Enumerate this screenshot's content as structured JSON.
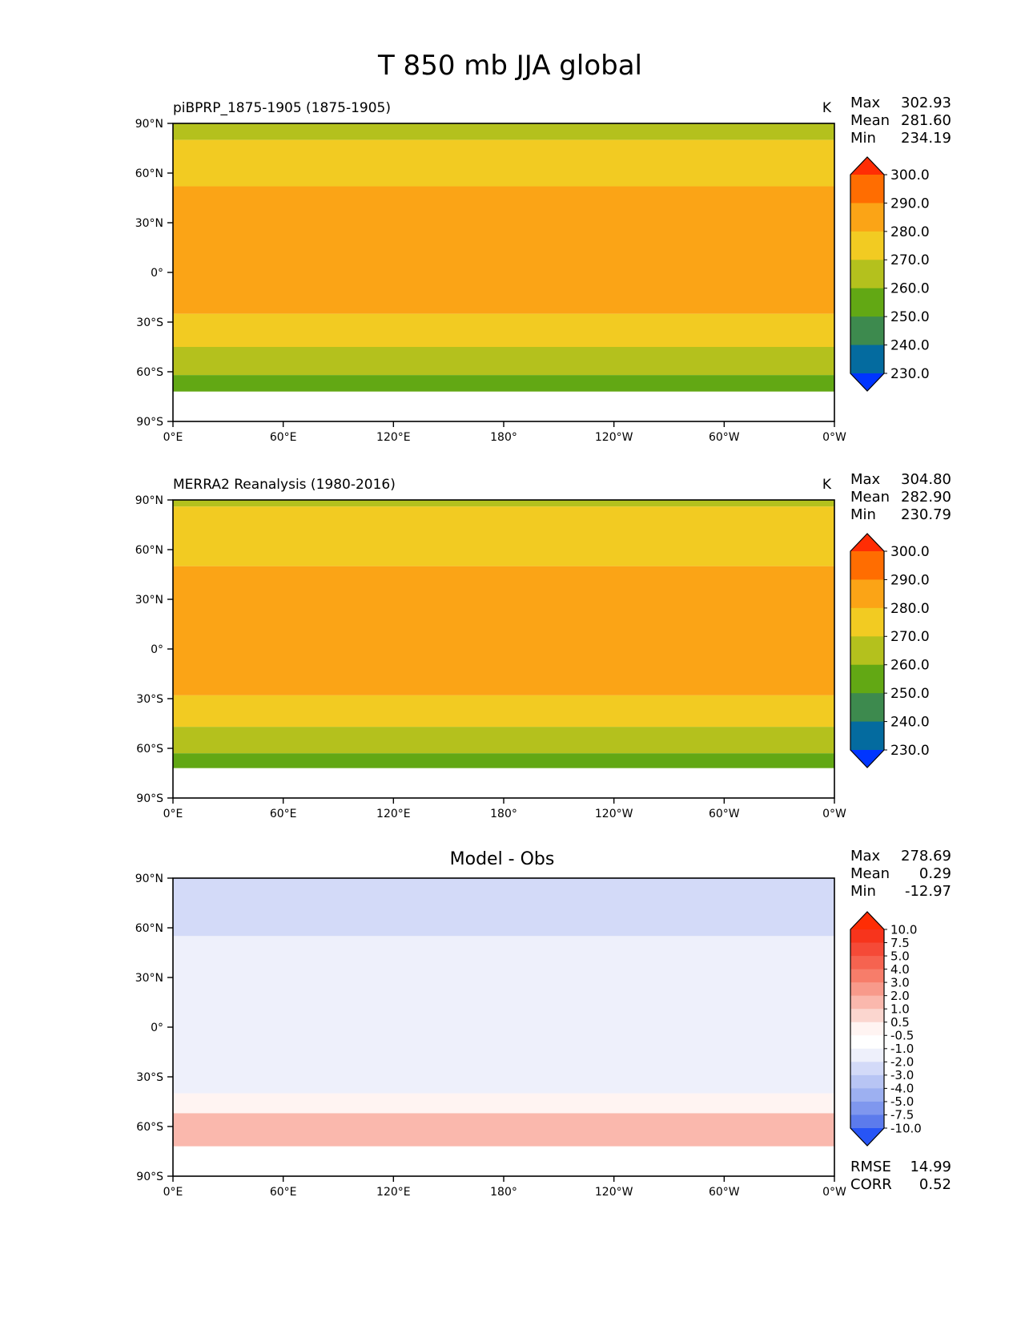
{
  "figure": {
    "title": "T 850 mb JJA global"
  },
  "chart_data": [
    {
      "type": "heatmap",
      "panel": "test",
      "left_title": "piBPRP_1875-1905 (1875-1905)",
      "units": "K",
      "stats": [
        {
          "label": "Max",
          "value": "302.93"
        },
        {
          "label": "Mean",
          "value": "281.60"
        },
        {
          "label": "Min",
          "value": "234.19"
        }
      ],
      "colorbar": {
        "ticks": [
          "300.0",
          "290.0",
          "280.0",
          "270.0",
          "260.0",
          "250.0",
          "240.0",
          "230.0"
        ],
        "colors": [
          "#ff2d04",
          "#ff6d01",
          "#fba416",
          "#f2cb22",
          "#b4c11d",
          "#62a814",
          "#3d8a4e",
          "#046b9f",
          "#0035ff"
        ]
      },
      "bands": [
        {
          "lat_top": 90,
          "lat_bottom": 80,
          "level": 260
        },
        {
          "lat_top": 80,
          "lat_bottom": 52,
          "level": 270
        },
        {
          "lat_top": 52,
          "lat_bottom": -25,
          "level": 280
        },
        {
          "lat_top": -25,
          "lat_bottom": -45,
          "level": 270
        },
        {
          "lat_top": -45,
          "lat_bottom": -62,
          "level": 260
        },
        {
          "lat_top": -62,
          "lat_bottom": -72,
          "level": 250
        },
        {
          "lat_top": -72,
          "lat_bottom": -90,
          "level": "missing"
        }
      ],
      "xlim": [
        0,
        360
      ],
      "ylim": [
        -90,
        90
      ]
    },
    {
      "type": "heatmap",
      "panel": "reference",
      "left_title": "MERRA2 Reanalysis (1980-2016)",
      "units": "K",
      "stats": [
        {
          "label": "Max",
          "value": "304.80"
        },
        {
          "label": "Mean",
          "value": "282.90"
        },
        {
          "label": "Min",
          "value": "230.79"
        }
      ],
      "colorbar": {
        "ticks": [
          "300.0",
          "290.0",
          "280.0",
          "270.0",
          "260.0",
          "250.0",
          "240.0",
          "230.0"
        ],
        "colors": [
          "#ff2d04",
          "#ff6d01",
          "#fba416",
          "#f2cb22",
          "#b4c11d",
          "#62a814",
          "#3d8a4e",
          "#046b9f",
          "#0035ff"
        ]
      },
      "bands": [
        {
          "lat_top": 90,
          "lat_bottom": 86,
          "level": 260
        },
        {
          "lat_top": 86,
          "lat_bottom": 50,
          "level": 270
        },
        {
          "lat_top": 50,
          "lat_bottom": -28,
          "level": 280
        },
        {
          "lat_top": -28,
          "lat_bottom": -47,
          "level": 270
        },
        {
          "lat_top": -47,
          "lat_bottom": -63,
          "level": 260
        },
        {
          "lat_top": -63,
          "lat_bottom": -72,
          "level": 250
        },
        {
          "lat_top": -72,
          "lat_bottom": -90,
          "level": "missing"
        }
      ],
      "xlim": [
        0,
        360
      ],
      "ylim": [
        -90,
        90
      ]
    },
    {
      "type": "heatmap",
      "panel": "difference",
      "center_title": "Model - Obs",
      "stats": [
        {
          "label": "Max",
          "value": "278.69"
        },
        {
          "label": "Mean",
          "value": "0.29"
        },
        {
          "label": "Min",
          "value": "-12.97"
        }
      ],
      "metrics": [
        {
          "label": "RMSE",
          "value": "14.99"
        },
        {
          "label": "CORR",
          "value": "0.52"
        }
      ],
      "colorbar": {
        "ticks": [
          "10.0",
          "7.5",
          "5.0",
          "4.0",
          "3.0",
          "2.0",
          "1.0",
          "0.5",
          "-0.5",
          "-1.0",
          "-2.0",
          "-3.0",
          "-4.0",
          "-5.0",
          "-7.5",
          "-10.0"
        ],
        "colors": [
          "#ff2d04",
          "#f7341c",
          "#f54a37",
          "#f66350",
          "#f77d6a",
          "#f89a8b",
          "#fab8ad",
          "#fbd6cf",
          "#fff4f2",
          "#ffffff",
          "#eef0fb",
          "#d3daf8",
          "#b8c5f4",
          "#9db0f1",
          "#7f97ee",
          "#5c7bec",
          "#2755f6"
        ]
      },
      "bands": [
        {
          "lat_top": 90,
          "lat_bottom": 55,
          "level": -2.5
        },
        {
          "lat_top": 55,
          "lat_bottom": 15,
          "level": -1.5
        },
        {
          "lat_top": 15,
          "lat_bottom": -40,
          "level": -1.5
        },
        {
          "lat_top": -40,
          "lat_bottom": -52,
          "level": -0.5
        },
        {
          "lat_top": -52,
          "lat_bottom": -72,
          "level": 1.5
        },
        {
          "lat_top": -72,
          "lat_bottom": -90,
          "level": "missing"
        }
      ],
      "xlim": [
        0,
        360
      ],
      "ylim": [
        -90,
        90
      ]
    }
  ],
  "axes": {
    "x_ticks": [
      {
        "lon": 0,
        "label": "0°E"
      },
      {
        "lon": 60,
        "label": "60°E"
      },
      {
        "lon": 120,
        "label": "120°E"
      },
      {
        "lon": 180,
        "label": "180°"
      },
      {
        "lon": 240,
        "label": "120°W"
      },
      {
        "lon": 300,
        "label": "60°W"
      },
      {
        "lon": 360,
        "label": "0°W"
      }
    ],
    "y_ticks": [
      {
        "lat": 90,
        "label": "90°N"
      },
      {
        "lat": 60,
        "label": "60°N"
      },
      {
        "lat": 30,
        "label": "30°N"
      },
      {
        "lat": 0,
        "label": "0°"
      },
      {
        "lat": -30,
        "label": "30°S"
      },
      {
        "lat": -60,
        "label": "60°S"
      },
      {
        "lat": -90,
        "label": "90°S"
      }
    ]
  }
}
